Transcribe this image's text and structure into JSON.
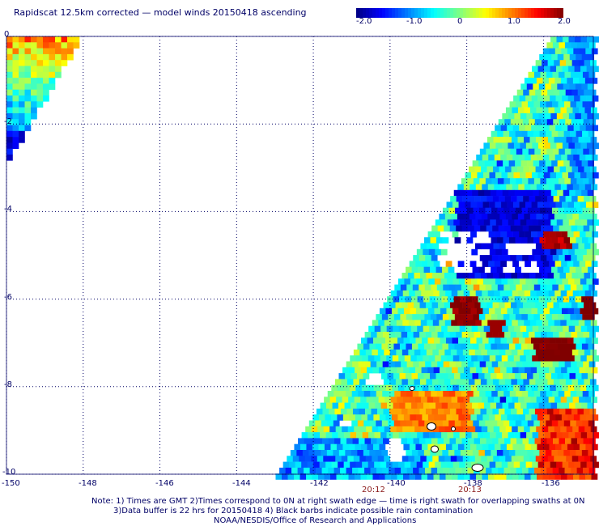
{
  "title": "Rapidscat 12.5km corrected — model winds 20150418 ascending",
  "colorbar": {
    "labels": [
      "-2.0",
      "-1.0",
      "0",
      "1.0",
      "2.0"
    ],
    "colors": [
      "#000080",
      "#0000ff",
      "#0080ff",
      "#00ffff",
      "#80ff80",
      "#ffff00",
      "#ff8000",
      "#ff0000",
      "#800000"
    ]
  },
  "axes": {
    "lon_labels": [
      "-150",
      "-148",
      "-146",
      "-144",
      "-142",
      "-140",
      "-138",
      "-136"
    ],
    "lat_labels": [
      "0",
      "-2",
      "-4",
      "-6",
      "-8",
      "-10"
    ]
  },
  "times": [
    "20:12",
    "20:13"
  ],
  "notes": {
    "line1": "Note: 1) Times are GMT 2)Times correspond to 0N at right swath edge — time is right swath for overlapping swaths at 0N",
    "line2": "3)Data buffer is 22 hrs for 20150418 4) Black barbs indicate possible rain contamination",
    "line3": "NOAA/NESDIS/Office of Research and Applications"
  },
  "map_data": {
    "extent": {
      "lon": [
        -150,
        -134.7
      ],
      "lat": [
        -10,
        0
      ]
    },
    "cell_deg": 0.167,
    "swaths": [
      {
        "name": "left",
        "corner": "top-left"
      },
      {
        "name": "right",
        "corner": "right"
      }
    ],
    "land": [
      "Marquesas Islands"
    ]
  }
}
